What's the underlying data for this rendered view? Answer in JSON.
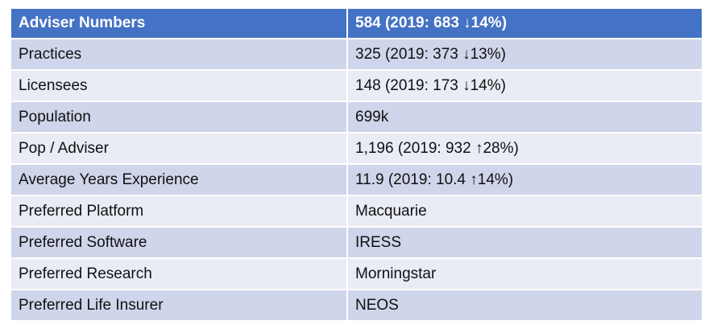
{
  "table": {
    "header": {
      "label": "Adviser Numbers",
      "value": "584 (2019: 683 ↓14%)"
    },
    "rows": [
      {
        "label": "Practices",
        "value": "325 (2019: 373 ↓13%)"
      },
      {
        "label": "Licensees",
        "value": "148 (2019: 173 ↓14%)"
      },
      {
        "label": "Population",
        "value": "699k"
      },
      {
        "label": "Pop / Adviser",
        "value": "1,196 (2019: 932 ↑28%)"
      },
      {
        "label": "Average Years Experience",
        "value": "11.9 (2019: 10.4 ↑14%)"
      },
      {
        "label": "Preferred Platform",
        "value": "Macquarie"
      },
      {
        "label": "Preferred Software",
        "value": "IRESS"
      },
      {
        "label": "Preferred Research",
        "value": "Morningstar"
      },
      {
        "label": "Preferred Life Insurer",
        "value": "NEOS"
      }
    ]
  },
  "colors": {
    "header_bg": "#4472c4",
    "row_odd_bg": "#cfd5ea",
    "row_even_bg": "#e9ebf5"
  }
}
